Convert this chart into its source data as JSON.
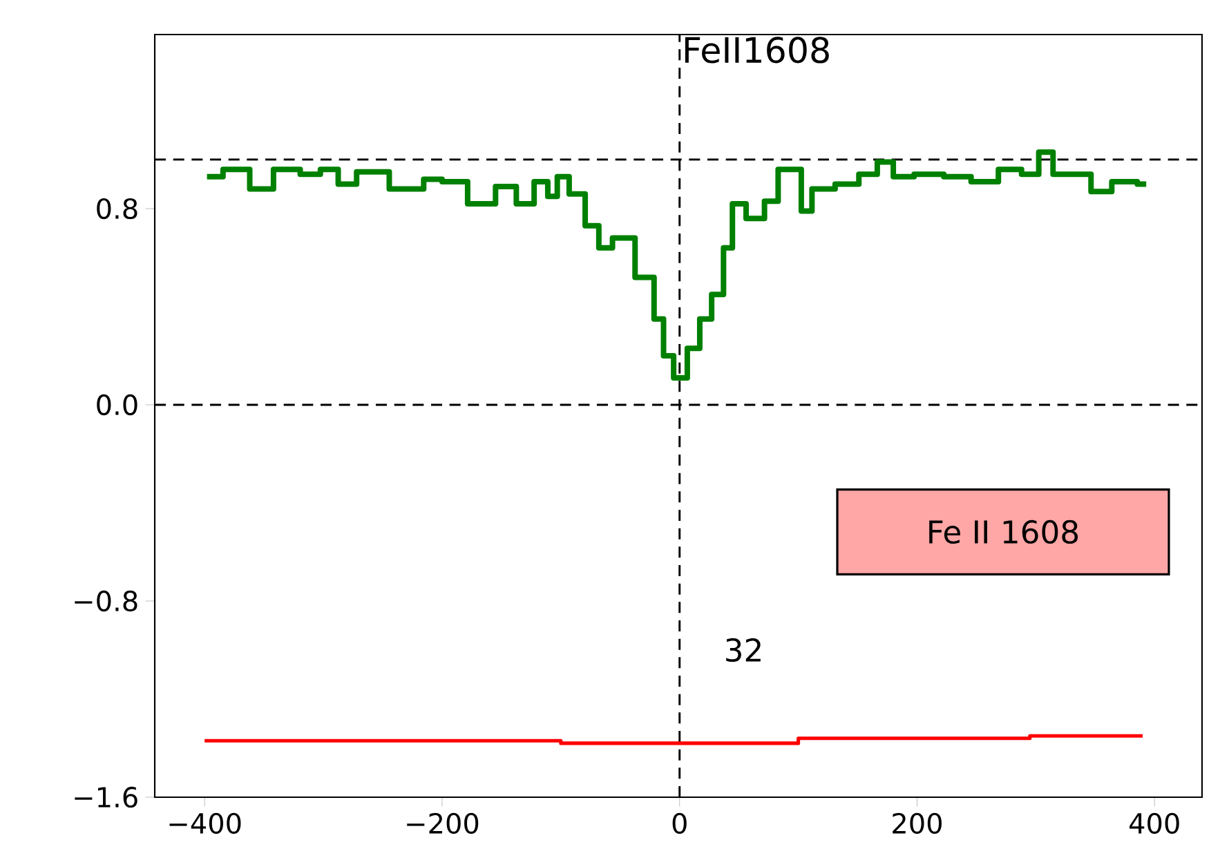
{
  "chart_data": {
    "type": "step",
    "title": "FeII1608",
    "xlim": [
      -442,
      440
    ],
    "ylim": [
      -1.6,
      1.51
    ],
    "xticks": [
      {
        "value": -400,
        "label": "−400"
      },
      {
        "value": -200,
        "label": "−200"
      },
      0,
      200,
      400
    ],
    "yticks": [
      {
        "value": -1.6,
        "label": "−1.6"
      },
      {
        "value": -0.8,
        "label": "−0.8"
      },
      {
        "value": 0,
        "label": "0.0"
      },
      0.8
    ],
    "grid": false,
    "series": [
      {
        "color": "#ff0000",
        "x": [
          -400,
          -200,
          0,
          200,
          390
        ],
        "values": [
          -1.37,
          -1.37,
          -1.38,
          -1.36,
          -1.35
        ]
      },
      {
        "color": "#008000",
        "x": [
          -398,
          -371,
          -353,
          -331,
          -308,
          -297,
          -278,
          -266,
          -223,
          -208,
          -192,
          -165,
          -145,
          -130,
          -115,
          -107,
          -99,
          -87,
          -72,
          -64,
          -49,
          -26,
          -17,
          -10,
          0,
          13,
          21,
          33,
          41,
          48,
          64,
          79,
          87,
          99,
          106,
          117,
          145,
          157,
          176,
          184,
          211,
          234,
          257,
          280,
          296,
          309,
          320,
          343,
          350,
          378,
          393
        ],
        "values": [
          0.93,
          0.96,
          0.88,
          0.96,
          0.94,
          0.96,
          0.9,
          0.95,
          0.88,
          0.92,
          0.91,
          0.82,
          0.89,
          0.82,
          0.91,
          0.85,
          0.93,
          0.86,
          0.73,
          0.64,
          0.68,
          0.52,
          0.35,
          0.2,
          0.11,
          0.23,
          0.35,
          0.45,
          0.64,
          0.82,
          0.76,
          0.83,
          0.96,
          0.96,
          0.79,
          0.88,
          0.9,
          0.94,
          0.99,
          0.93,
          0.94,
          0.93,
          0.91,
          0.96,
          0.94,
          1.03,
          0.94,
          0.94,
          0.87,
          0.91,
          0.9
        ]
      }
    ],
    "ref_lines": [
      {
        "axis": "y",
        "value": 0,
        "line_style": "dashed"
      },
      {
        "axis": "y",
        "value": 1,
        "line_style": "dashed"
      },
      {
        "axis": "x",
        "value": 0,
        "line_style": "dashed"
      }
    ],
    "annotations": [
      "Fe II 1608",
      "32"
    ]
  }
}
